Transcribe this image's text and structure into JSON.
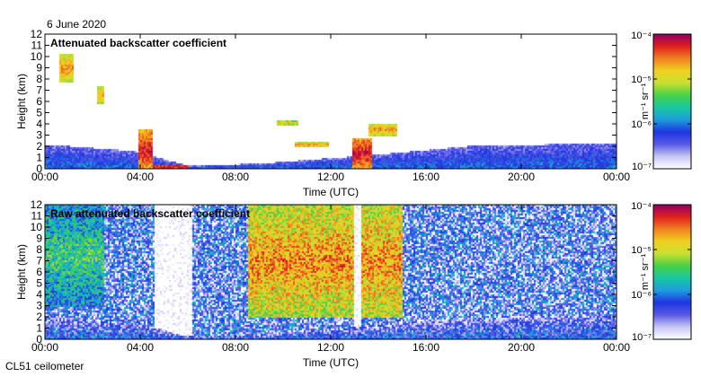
{
  "header": {
    "date": "6 June 2020",
    "instrument": "CL51 ceilometer"
  },
  "colors": {
    "scale": [
      "#ffffff",
      "#c7c7f5",
      "#5a5ae6",
      "#1e35e0",
      "#1e9cdc",
      "#18c8a0",
      "#48d048",
      "#c8e030",
      "#f0d020",
      "#f08020",
      "#e02020",
      "#900060"
    ]
  },
  "chart_data": [
    {
      "type": "heatmap",
      "panel": "top",
      "title": "Attenuated backscatter coefficient",
      "xlabel": "Time (UTC)",
      "ylabel": "Height (km)",
      "xlim_hours": [
        0,
        24
      ],
      "ylim_km": [
        0,
        12
      ],
      "xticks": [
        0,
        4,
        8,
        12,
        16,
        20,
        24
      ],
      "xtick_labels": [
        "00:00",
        "04:00",
        "08:00",
        "12:00",
        "16:00",
        "20:00",
        "00:00"
      ],
      "yticks": [
        0,
        1,
        2,
        3,
        4,
        5,
        6,
        7,
        8,
        9,
        10,
        11,
        12
      ],
      "ytick_labels": [
        "0",
        "1",
        "2",
        "3",
        "4",
        "5",
        "6",
        "7",
        "8",
        "9",
        "10",
        "11",
        "12"
      ],
      "colorbar": {
        "unit_label": "m⁻¹ sr⁻¹",
        "range_log10": [
          -7,
          -4
        ],
        "tick_labels": [
          "10⁻⁴",
          "10⁻⁵",
          "10⁻⁶",
          "10⁻⁷"
        ],
        "tick_values_log10": [
          -4,
          -5,
          -6,
          -7
        ]
      },
      "features": [
        {
          "kind": "boundary_layer",
          "hours": [
            0,
            24
          ],
          "top_km": [
            2.2,
            1.6,
            0.3,
            0.5,
            1.3,
            2.1,
            2.3
          ],
          "top_at_hours": [
            0,
            3.8,
            6,
            9,
            14,
            18,
            24
          ],
          "log10": -6.2
        },
        {
          "kind": "cloud",
          "hours": [
            0.6,
            1.2
          ],
          "km": [
            7.8,
            10.2
          ],
          "log10": -4.6
        },
        {
          "kind": "cloud",
          "hours": [
            2.2,
            2.5
          ],
          "km": [
            5.8,
            7.4
          ],
          "log10": -4.7
        },
        {
          "kind": "cloud",
          "hours": [
            3.9,
            4.5
          ],
          "km": [
            0.0,
            3.5
          ],
          "log10": -4.2
        },
        {
          "kind": "cloud",
          "hours": [
            4.5,
            6.0
          ],
          "km": [
            0.0,
            0.4
          ],
          "log10": -4.1
        },
        {
          "kind": "cloud",
          "hours": [
            9.7,
            10.6
          ],
          "km": [
            3.9,
            4.3
          ],
          "log10": -4.8
        },
        {
          "kind": "cloud",
          "hours": [
            10.5,
            11.9
          ],
          "km": [
            1.9,
            2.4
          ],
          "log10": -4.6
        },
        {
          "kind": "cloud",
          "hours": [
            12.9,
            13.7
          ],
          "km": [
            0.0,
            2.8
          ],
          "log10": -4.2
        },
        {
          "kind": "cloud",
          "hours": [
            13.6,
            14.8
          ],
          "km": [
            3.0,
            4.1
          ],
          "log10": -4.6
        }
      ]
    },
    {
      "type": "heatmap",
      "panel": "bottom",
      "title": "Raw attenuated backscatter coefficient",
      "xlabel": "Time (UTC)",
      "ylabel": "Height (km)",
      "xlim_hours": [
        0,
        24
      ],
      "ylim_km": [
        0,
        12
      ],
      "xticks": [
        0,
        4,
        8,
        12,
        16,
        20,
        24
      ],
      "xtick_labels": [
        "00:00",
        "04:00",
        "08:00",
        "12:00",
        "16:00",
        "20:00",
        "00:00"
      ],
      "yticks": [
        0,
        1,
        2,
        3,
        4,
        5,
        6,
        7,
        8,
        9,
        10,
        11,
        12
      ],
      "ytick_labels": [
        "0",
        "1",
        "2",
        "3",
        "4",
        "5",
        "6",
        "7",
        "8",
        "9",
        "10",
        "11",
        "12"
      ],
      "colorbar": {
        "unit_label": "m⁻¹ sr⁻¹",
        "range_log10": [
          -7,
          -4
        ],
        "tick_labels": [
          "10⁻⁴",
          "10⁻⁵",
          "10⁻⁶",
          "10⁻⁷"
        ],
        "tick_values_log10": [
          -4,
          -5,
          -6,
          -7
        ]
      },
      "features": [
        {
          "kind": "noise_band",
          "hours": [
            0,
            2.5
          ],
          "km": [
            3,
            12
          ],
          "log10": -5.5
        },
        {
          "kind": "noise_band",
          "hours": [
            8.5,
            15
          ],
          "km": [
            2,
            12
          ],
          "log10": -4.6
        },
        {
          "kind": "clear_column",
          "hours": [
            4.6,
            6.2
          ],
          "km": [
            0,
            12
          ],
          "log10": -7.2
        },
        {
          "kind": "clear_column",
          "hours": [
            13.0,
            13.3
          ],
          "km": [
            0,
            12
          ],
          "log10": -7.2
        },
        {
          "kind": "boundary_layer",
          "hours": [
            0,
            24
          ],
          "top_km": [
            2.0,
            1.5,
            0.3,
            0.5,
            1.3,
            2.0,
            2.2
          ],
          "top_at_hours": [
            0,
            3.8,
            6,
            9,
            14,
            18,
            24
          ],
          "log10": -6.3
        }
      ]
    }
  ]
}
